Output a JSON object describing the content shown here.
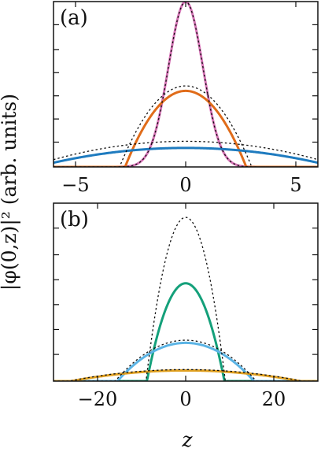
{
  "chart_data": [
    {
      "type": "line",
      "panel_label": "(a)",
      "xlabel": "z",
      "ylabel": "|φ(0,z)|² (arb. units)",
      "xlim": [
        -6,
        6
      ],
      "ylim": [
        0,
        1.0
      ],
      "x_ticks": [
        -5,
        0,
        5
      ],
      "x_tick_labels": [
        "−5",
        "0",
        "5"
      ],
      "y_ticks": [
        0.15,
        0.29,
        0.43,
        0.57,
        0.71,
        0.86
      ],
      "y_tick_labels_shown": false,
      "grid": false,
      "legend": "none",
      "series": [
        {
          "style": "solid",
          "color": "#d673b6",
          "shape": "gaussian",
          "center": 0,
          "peak": 1.0,
          "width": 0.78
        },
        {
          "style": "solid",
          "color": "#e06c1a",
          "shape": "parabola",
          "center": 0,
          "peak": 0.46,
          "half_width": 2.75
        },
        {
          "style": "solid",
          "color": "#1e7bbf",
          "shape": "parabola",
          "center": 0,
          "peak": 0.115,
          "half_width": 6.8
        },
        {
          "style": "dotted",
          "color": "#111111",
          "shape": "gaussian",
          "center": 0,
          "peak": 1.0,
          "width": 0.78
        },
        {
          "style": "dotted",
          "color": "#111111",
          "shape": "parabola",
          "center": 0,
          "peak": 0.49,
          "half_width": 3.0
        },
        {
          "style": "dotted",
          "color": "#111111",
          "shape": "parabola",
          "center": 0,
          "peak": 0.155,
          "half_width": 7.1
        }
      ]
    },
    {
      "type": "line",
      "panel_label": "(b)",
      "xlabel": "z",
      "ylabel": "|φ(0,z)|² (arb. units)",
      "xlim": [
        -30,
        30
      ],
      "ylim": [
        0,
        1.0
      ],
      "x_ticks": [
        -20,
        0,
        20
      ],
      "x_tick_labels": [
        "−20",
        "0",
        "20"
      ],
      "y_ticks": [
        0.15,
        0.29,
        0.43,
        0.57,
        0.71,
        0.86
      ],
      "y_tick_labels_shown": false,
      "grid": false,
      "legend": "none",
      "series": [
        {
          "style": "solid",
          "color": "#14a07a",
          "shape": "parabola",
          "center": 0,
          "peak": 0.55,
          "half_width": 8.8
        },
        {
          "style": "solid",
          "color": "#5bb4e5",
          "shape": "parabola",
          "center": 0,
          "peak": 0.215,
          "half_width": 15.5
        },
        {
          "style": "solid",
          "color": "#e0a020",
          "shape": "parabola",
          "center": 0,
          "peak": 0.06,
          "half_width": 26.0
        },
        {
          "style": "dotted",
          "color": "#111111",
          "shape": "parabola",
          "center": 0,
          "peak": 0.92,
          "half_width": 9.0
        },
        {
          "style": "dotted",
          "color": "#111111",
          "shape": "parabola",
          "center": 0,
          "peak": 0.23,
          "half_width": 16.0
        },
        {
          "style": "dotted",
          "color": "#111111",
          "shape": "parabola",
          "center": 0,
          "peak": 0.065,
          "half_width": 26.5
        }
      ]
    }
  ]
}
